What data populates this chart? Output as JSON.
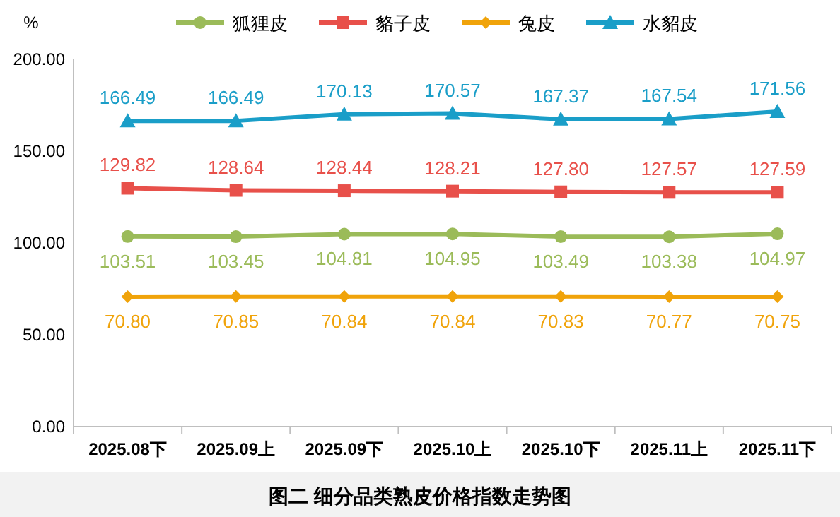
{
  "chart_data": {
    "type": "line",
    "title": "图二  细分品类熟皮价格指数走势图",
    "ylabel": "%",
    "categories": [
      "2025.08下",
      "2025.09上",
      "2025.09下",
      "2025.10上",
      "2025.10下",
      "2025.11上",
      "2025.11下"
    ],
    "series": [
      {
        "name": "狐狸皮",
        "color": "#9bbb59",
        "marker": "circle",
        "values": [
          103.51,
          103.45,
          104.81,
          104.95,
          103.49,
          103.38,
          104.97
        ],
        "value_labels": [
          "103.51",
          "103.45",
          "104.81",
          "104.95",
          "103.49",
          "103.38",
          "104.97"
        ]
      },
      {
        "name": "貉子皮",
        "color": "#e8504a",
        "marker": "square",
        "values": [
          129.82,
          128.64,
          128.44,
          128.21,
          127.8,
          127.57,
          127.59
        ],
        "value_labels": [
          "129.82",
          "128.64",
          "128.44",
          "128.21",
          "127.80",
          "127.57",
          "127.59"
        ]
      },
      {
        "name": "兔皮",
        "color": "#f0a30a",
        "marker": "diamond",
        "values": [
          70.8,
          70.85,
          70.84,
          70.84,
          70.83,
          70.77,
          70.75
        ],
        "value_labels": [
          "70.80",
          "70.85",
          "70.84",
          "70.84",
          "70.83",
          "70.77",
          "70.75"
        ]
      },
      {
        "name": "水貂皮",
        "color": "#1a9ec8",
        "marker": "triangle",
        "values": [
          166.49,
          166.49,
          170.13,
          170.57,
          167.37,
          167.54,
          171.56
        ],
        "value_labels": [
          "166.49",
          "166.49",
          "170.13",
          "170.57",
          "167.37",
          "167.54",
          "171.56"
        ]
      }
    ],
    "ylim": [
      0,
      200
    ],
    "yticks": [
      {
        "value": 0,
        "label": "0.00"
      },
      {
        "value": 50,
        "label": "50.00"
      },
      {
        "value": 100,
        "label": "100.00"
      },
      {
        "value": 150,
        "label": "150.00"
      },
      {
        "value": 200,
        "label": "200.00"
      }
    ],
    "legend": "top",
    "grid": false
  }
}
